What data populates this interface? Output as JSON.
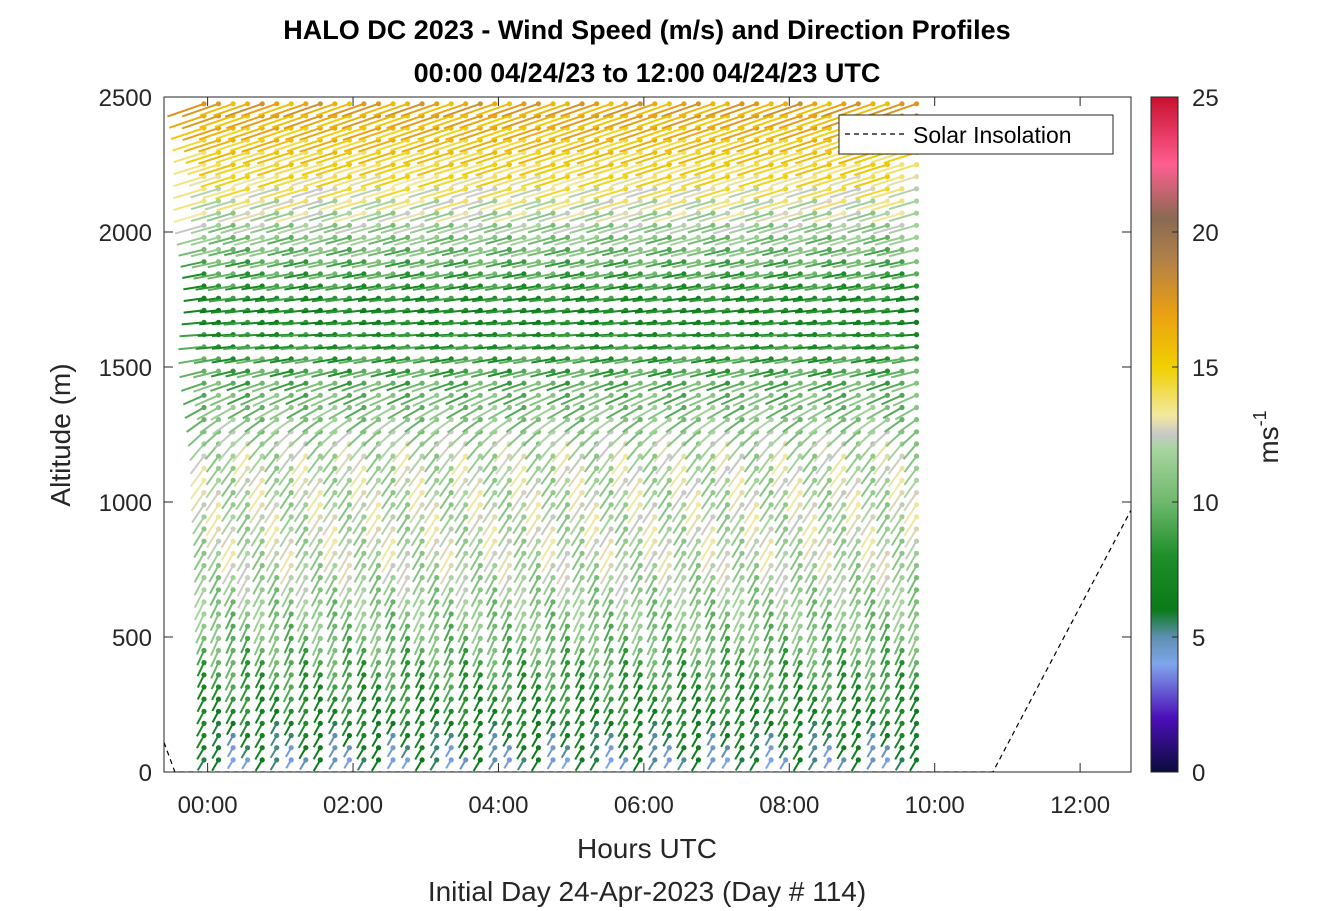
{
  "chart_data": {
    "type": "wind-barb-profile",
    "title": "HALO DC 2023 - Wind Speed (m/s) and Direction Profiles",
    "subtitle": "00:00 04/24/23 to 12:00 04/24/23  UTC",
    "xlabel": "Hours UTC",
    "xlabel2": "Initial Day 24-Apr-2023 (Day # 114)",
    "ylabel": "Altitude (m)",
    "xlim": [
      -0.6,
      12.7
    ],
    "ylim": [
      0,
      2500
    ],
    "x_ticks": [
      {
        "value": 0,
        "label": "00:00"
      },
      {
        "value": 2,
        "label": "02:00"
      },
      {
        "value": 4,
        "label": "04:00"
      },
      {
        "value": 6,
        "label": "06:00"
      },
      {
        "value": 8,
        "label": "08:00"
      },
      {
        "value": 10,
        "label": "10:00"
      },
      {
        "value": 12,
        "label": "12:00"
      }
    ],
    "y_ticks": [
      0,
      500,
      1000,
      1500,
      2000,
      2500
    ],
    "colorbar": {
      "label": "ms",
      "label_exponent": "-1",
      "range": [
        0,
        25
      ],
      "ticks": [
        0,
        5,
        10,
        15,
        20,
        25
      ],
      "stops": [
        {
          "v": 0,
          "c": "#0b0b3b"
        },
        {
          "v": 2,
          "c": "#4b0fb8"
        },
        {
          "v": 4,
          "c": "#7fa6ec"
        },
        {
          "v": 5,
          "c": "#5e8fb0"
        },
        {
          "v": 6,
          "c": "#0a7a1a"
        },
        {
          "v": 8,
          "c": "#1f8f2a"
        },
        {
          "v": 10,
          "c": "#6fb86e"
        },
        {
          "v": 12,
          "c": "#a9d5a0"
        },
        {
          "v": 12.5,
          "c": "#c8c8c8"
        },
        {
          "v": 13.2,
          "c": "#f2e9a0"
        },
        {
          "v": 15,
          "c": "#f0d000"
        },
        {
          "v": 17,
          "c": "#eaa012"
        },
        {
          "v": 19,
          "c": "#b0804a"
        },
        {
          "v": 20.5,
          "c": "#8a6a52"
        },
        {
          "v": 22.5,
          "c": "#ff5e90"
        },
        {
          "v": 25,
          "c": "#c8102e"
        }
      ]
    },
    "profile_times": [
      -0.05,
      0.15,
      0.35,
      0.55,
      0.75,
      0.95,
      1.15,
      1.35,
      1.55,
      1.75,
      1.95,
      2.15,
      2.35,
      2.55,
      2.75,
      2.95,
      3.15,
      3.35,
      3.55,
      3.75,
      3.95,
      4.15,
      4.35,
      4.55,
      4.75,
      4.95,
      5.15,
      5.35,
      5.55,
      5.75,
      5.95,
      6.15,
      6.35,
      6.55,
      6.75,
      6.95,
      7.15,
      7.35,
      7.55,
      7.75,
      7.95,
      8.15,
      8.35,
      8.55,
      8.75,
      8.95,
      9.15,
      9.35,
      9.55,
      9.75
    ],
    "speed_profile": [
      {
        "alt": 50,
        "speed": 5
      },
      {
        "alt": 200,
        "speed": 7
      },
      {
        "alt": 500,
        "speed": 10
      },
      {
        "alt": 800,
        "speed": 12
      },
      {
        "alt": 1200,
        "speed": 12
      },
      {
        "alt": 1500,
        "speed": 9
      },
      {
        "alt": 1700,
        "speed": 7
      },
      {
        "alt": 2000,
        "speed": 11
      },
      {
        "alt": 2200,
        "speed": 14
      },
      {
        "alt": 2500,
        "speed": 17
      }
    ],
    "direction_profile": [
      {
        "alt": 50,
        "dir_deg": 200
      },
      {
        "alt": 500,
        "dir_deg": 195
      },
      {
        "alt": 1200,
        "dir_deg": 205
      },
      {
        "alt": 1600,
        "dir_deg": 265
      },
      {
        "alt": 2000,
        "dir_deg": 245
      },
      {
        "alt": 2500,
        "dir_deg": 240
      }
    ],
    "series": [
      {
        "name": "Solar Insolation",
        "style": "dashed",
        "points": [
          {
            "x": -0.6,
            "y": 110
          },
          {
            "x": -0.45,
            "y": 0
          },
          {
            "x": 10.8,
            "y": 0
          },
          {
            "x": 12.7,
            "y": 970
          }
        ]
      }
    ],
    "legend": {
      "position": "top-right",
      "entries": [
        "Solar Insolation"
      ]
    }
  }
}
